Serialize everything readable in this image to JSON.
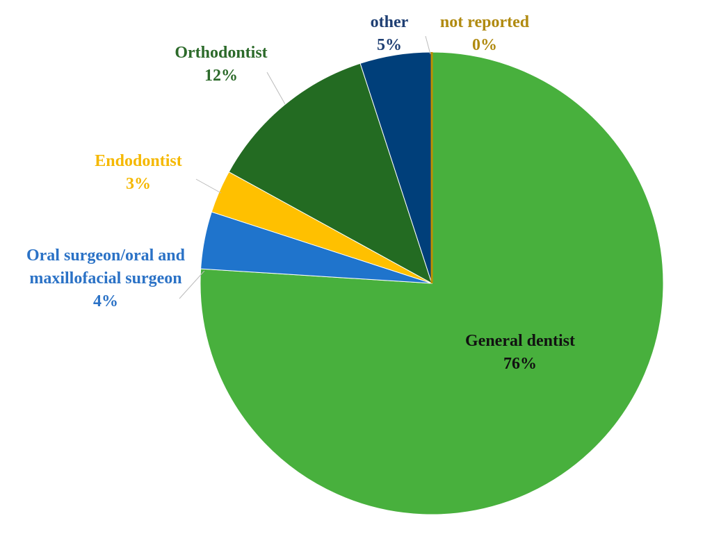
{
  "chart_data": {
    "type": "pie",
    "categories": [
      "General dentist",
      "Oral surgeon/oral and maxillofacial surgeon",
      "Endodontist",
      "Orthodontist",
      "other",
      "not reported"
    ],
    "values": [
      76,
      4,
      3,
      12,
      5,
      0
    ],
    "value_labels": [
      "76%",
      "4%",
      "3%",
      "12%",
      "5%",
      "0%"
    ],
    "colors": [
      "#48b03d",
      "#1f74cc",
      "#ffc000",
      "#236b22",
      "#003f7a",
      "#bf8f00"
    ],
    "label_colors": [
      "#111111",
      "#2b72c6",
      "#f5b800",
      "#2c6a2a",
      "#1f3f73",
      "#b08a10"
    ]
  }
}
